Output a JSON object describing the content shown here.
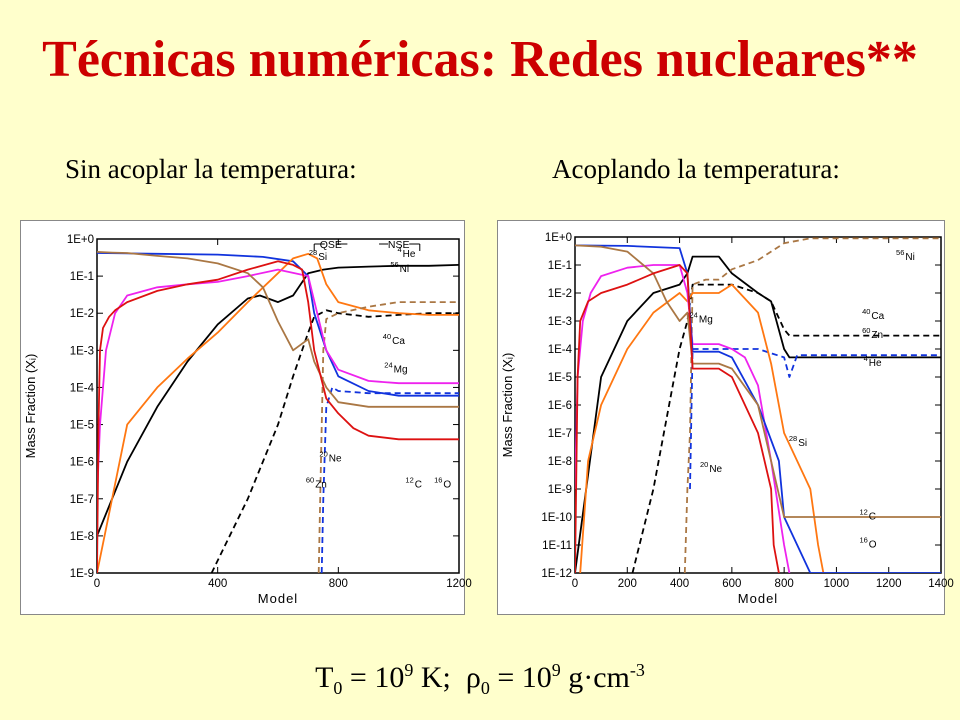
{
  "title": "Técnicas numéricas: Redes nucleares**",
  "subtitles": {
    "left": "Sin acoplar la temperatura:",
    "right": "Acoplando la temperatura:"
  },
  "footer": {
    "t_sym": "T",
    "t_sub": "0",
    "eq1": " = 10",
    "exp1": "9",
    "unit1": " K;  ",
    "rho_sym": "ρ",
    "rho_sub": "0",
    "eq2": " = 10",
    "exp2": "9",
    "unit2": " g·cm",
    "exp3": "-3"
  },
  "colors": {
    "background": "#ffffcc",
    "title": "#cc0000",
    "black": "#000000",
    "red": "#dd1111",
    "blue": "#1133dd",
    "magenta": "#ee22ee",
    "orange": "#ff7711",
    "brown": "#aa7744"
  },
  "chart_data": [
    {
      "type": "line",
      "xlabel": "Model",
      "ylabel": "Mass Fraction (Xᵢ)",
      "xlim": [
        0,
        1200
      ],
      "xticks": [
        "0",
        "400",
        "800",
        "1200"
      ],
      "ylog": true,
      "ylim": [
        1e-09,
        1
      ],
      "ytick_labels": [
        "1E+0",
        "1E-1",
        "1E-2",
        "1E-3",
        "1E-4",
        "1E-5",
        "1E-6",
        "1E-7",
        "1E-8",
        "1E-9"
      ],
      "annotations": [
        "QSE",
        "NSE"
      ],
      "species_labels": [
        {
          "mass": "28",
          "el": "Si",
          "x": 730,
          "y": 0.27
        },
        {
          "mass": "4",
          "el": "He",
          "x": 1010,
          "y": 0.33
        },
        {
          "mass": "56",
          "el": "Ni",
          "x": 1000,
          "y": 0.13
        },
        {
          "mass": "40",
          "el": "Ca",
          "x": 975,
          "y": 0.0015
        },
        {
          "mass": "24",
          "el": "Mg",
          "x": 980,
          "y": 0.00025
        },
        {
          "mass": "20",
          "el": "Ne",
          "x": 765,
          "y": 1e-06
        },
        {
          "mass": "60",
          "el": "Zn",
          "x": 720,
          "y": 2e-07
        },
        {
          "mass": "12",
          "el": "C",
          "x": 1050,
          "y": 2e-07
        },
        {
          "mass": "16",
          "el": "O",
          "x": 1145,
          "y": 2e-07
        }
      ],
      "series": [
        {
          "color": "#000000",
          "x": [
            0,
            50,
            100,
            200,
            300,
            400,
            500,
            540,
            600,
            650,
            700,
            750,
            800,
            900,
            1000,
            1100,
            1200
          ],
          "y": [
            1e-08,
            1e-07,
            1e-06,
            3e-05,
            0.0005,
            0.005,
            0.025,
            0.03,
            0.02,
            0.03,
            0.12,
            0.15,
            0.17,
            0.18,
            0.19,
            0.19,
            0.2
          ]
        },
        {
          "color": "#000000",
          "dash": true,
          "x": [
            380,
            500,
            600,
            650,
            700,
            720,
            760,
            800,
            900,
            1000,
            1100,
            1200
          ],
          "y": [
            1e-09,
            1e-07,
            1e-05,
            0.0002,
            0.003,
            0.008,
            0.012,
            0.01,
            0.008,
            0.009,
            0.01,
            0.01
          ]
        },
        {
          "color": "#1133dd",
          "x": [
            0,
            200,
            400,
            550,
            650,
            700,
            720,
            760,
            800,
            900,
            1000,
            1100,
            1200
          ],
          "y": [
            0.42,
            0.4,
            0.38,
            0.33,
            0.25,
            0.1,
            0.01,
            0.001,
            0.0002,
            8e-05,
            6e-05,
            6e-05,
            6e-05
          ]
        },
        {
          "color": "#1133dd",
          "dash": true,
          "x": [
            745,
            750,
            760,
            780,
            800,
            900,
            1000,
            1100,
            1200
          ],
          "y": [
            1e-09,
            1e-07,
            3e-05,
            0.0001,
            8e-05,
            7e-05,
            7e-05,
            7e-05,
            7e-05
          ]
        },
        {
          "color": "#ff7711",
          "x": [
            0,
            100,
            200,
            300,
            400,
            500,
            600,
            650,
            700,
            730,
            760,
            800,
            900,
            1000,
            1100,
            1200
          ],
          "y": [
            1e-09,
            1e-05,
            0.0001,
            0.0006,
            0.003,
            0.02,
            0.12,
            0.3,
            0.4,
            0.3,
            0.06,
            0.02,
            0.012,
            0.01,
            0.009,
            0.009
          ]
        },
        {
          "color": "#aa7744",
          "dash": true,
          "x": [
            735,
            740,
            750,
            760,
            800,
            900,
            1000,
            1100,
            1200
          ],
          "y": [
            1e-09,
            1e-07,
            0.001,
            0.007,
            0.01,
            0.015,
            0.02,
            0.02,
            0.02
          ]
        },
        {
          "color": "#ee22ee",
          "x": [
            0,
            10,
            30,
            60,
            100,
            200,
            300,
            400,
            500,
            600,
            700,
            730,
            760,
            800,
            900,
            1000,
            1100,
            1200
          ],
          "y": [
            1e-07,
            1e-05,
            0.001,
            0.01,
            0.03,
            0.05,
            0.06,
            0.07,
            0.1,
            0.15,
            0.1,
            0.01,
            0.001,
            0.0003,
            0.00015,
            0.00013,
            0.00013,
            0.00013
          ]
        },
        {
          "color": "#aa7744",
          "x": [
            0,
            50,
            100,
            200,
            300,
            400,
            500,
            550,
            600,
            650,
            700,
            720,
            760,
            800,
            900,
            1000,
            1100,
            1200
          ],
          "y": [
            0.45,
            0.43,
            0.42,
            0.35,
            0.3,
            0.22,
            0.12,
            0.05,
            0.006,
            0.001,
            0.002,
            0.0005,
            0.0001,
            4e-05,
            3e-05,
            3e-05,
            3e-05,
            3e-05
          ]
        },
        {
          "color": "#dd1111",
          "x": [
            0,
            5,
            10,
            20,
            40,
            60,
            100,
            200,
            300,
            400,
            500,
            600,
            650,
            680,
            700,
            720,
            760,
            800,
            850,
            900,
            1000,
            1100,
            1200
          ],
          "y": [
            1e-09,
            1e-05,
            0.001,
            0.004,
            0.008,
            0.012,
            0.02,
            0.04,
            0.06,
            0.08,
            0.15,
            0.25,
            0.2,
            0.15,
            0.02,
            0.001,
            5e-05,
            2e-05,
            8e-06,
            5e-06,
            4e-06,
            4e-06,
            4e-06
          ]
        }
      ]
    },
    {
      "type": "line",
      "xlabel": "Model",
      "ylabel": "Mass Fraction (Xᵢ)",
      "xlim": [
        0,
        1400
      ],
      "xticks": [
        "0",
        "200",
        "400",
        "600",
        "800",
        "1000",
        "1200",
        "1400"
      ],
      "ylog": true,
      "ylim": [
        1e-12,
        1
      ],
      "ytick_labels": [
        "1E+0",
        "1E-1",
        "1E-2",
        "1E-3",
        "1E-4",
        "1E-5",
        "1E-6",
        "1E-7",
        "1E-8",
        "1E-9",
        "1E-10",
        "1E-11",
        "1E-12"
      ],
      "species_labels": [
        {
          "mass": "56",
          "el": "Ni",
          "x": 1260,
          "y": 0.15
        },
        {
          "mass": "40",
          "el": "Ca",
          "x": 1130,
          "y": 0.0012
        },
        {
          "mass": "60",
          "el": "Zn",
          "x": 1130,
          "y": 0.00025
        },
        {
          "mass": "4",
          "el": "He",
          "x": 1120,
          "y": 2.5e-05
        },
        {
          "mass": "24",
          "el": "Mg",
          "x": 470,
          "y": 0.00088
        },
        {
          "mass": "28",
          "el": "Si",
          "x": 850,
          "y": 3.5e-08
        },
        {
          "mass": "20",
          "el": "Ne",
          "x": 510,
          "y": 4e-09
        },
        {
          "mass": "12",
          "el": "C",
          "x": 1120,
          "y": 8e-11
        },
        {
          "mass": "16",
          "el": "O",
          "x": 1120,
          "y": 8e-12
        }
      ],
      "series": [
        {
          "color": "#000000",
          "x": [
            0,
            100,
            200,
            300,
            400,
            430,
            450,
            550,
            600,
            700,
            750,
            800,
            820,
            900,
            1000,
            1100,
            1200,
            1300,
            1400
          ],
          "y": [
            1e-12,
            1e-05,
            0.001,
            0.01,
            0.02,
            0.05,
            0.2,
            0.2,
            0.05,
            0.01,
            0.005,
            0.0001,
            5e-05,
            5e-05,
            5e-05,
            5e-05,
            5e-05,
            5e-05,
            5e-05
          ]
        },
        {
          "color": "#000000",
          "dash": true,
          "x": [
            220,
            300,
            360,
            400,
            430,
            450,
            550,
            600,
            700,
            750,
            800,
            820,
            900,
            1000,
            1100,
            1200,
            1300,
            1400
          ],
          "y": [
            1e-12,
            1e-09,
            1e-06,
            0.0001,
            0.001,
            0.02,
            0.02,
            0.02,
            0.01,
            0.005,
            0.0005,
            0.0003,
            0.0003,
            0.0003,
            0.0003,
            0.0003,
            0.0003,
            0.0003
          ]
        },
        {
          "color": "#aa7744",
          "dash": true,
          "x": [
            420,
            430,
            440,
            450,
            500,
            550,
            600,
            700,
            800,
            900,
            1000,
            1200,
            1400
          ],
          "y": [
            1e-12,
            1e-09,
            1e-07,
            0.02,
            0.03,
            0.03,
            0.07,
            0.15,
            0.6,
            0.9,
            0.9,
            0.9,
            0.9
          ]
        },
        {
          "color": "#1133dd",
          "dash": true,
          "x": [
            440,
            450,
            550,
            600,
            700,
            800,
            820,
            850,
            900,
            1000,
            1200,
            1400
          ],
          "y": [
            1e-09,
            0.0001,
            0.0001,
            0.0001,
            0.0001,
            5e-05,
            1e-05,
            6e-05,
            6e-05,
            6e-05,
            6e-05,
            6e-05
          ]
        },
        {
          "color": "#ff7711",
          "x": [
            20,
            50,
            100,
            200,
            300,
            400,
            430,
            450,
            550,
            600,
            700,
            750,
            800,
            850,
            900,
            930,
            950
          ],
          "y": [
            1e-12,
            1e-08,
            1e-06,
            0.0001,
            0.002,
            0.01,
            0.005,
            0.01,
            0.01,
            0.02,
            0.002,
            3e-05,
            1e-07,
            1e-08,
            1e-09,
            1e-11,
            1e-12
          ]
        },
        {
          "color": "#ee22ee",
          "x": [
            0,
            10,
            30,
            60,
            100,
            200,
            300,
            400,
            430,
            450,
            550,
            600,
            650,
            700,
            750,
            800,
            820
          ],
          "y": [
            1e-09,
            1e-05,
            0.001,
            0.01,
            0.04,
            0.08,
            0.1,
            0.1,
            0.01,
            0.00015,
            0.00015,
            0.0001,
            5e-05,
            5e-06,
            1e-08,
            1e-11,
            1e-12
          ]
        },
        {
          "color": "#1133dd",
          "x": [
            0,
            200,
            400,
            430,
            450,
            550,
            600,
            700,
            780,
            800,
            850,
            900,
            1000,
            1100,
            1200,
            1300,
            1400
          ],
          "y": [
            0.5,
            0.48,
            0.4,
            0.05,
            8e-05,
            8e-05,
            5e-05,
            1e-06,
            1e-08,
            1e-10,
            1e-11,
            1e-12,
            1e-12,
            1e-12,
            1e-12,
            1e-12,
            1e-12
          ]
        },
        {
          "color": "#aa7744",
          "x": [
            0,
            100,
            200,
            300,
            350,
            400,
            430,
            450,
            550,
            600,
            700,
            750,
            800,
            850,
            1000,
            1200,
            1400
          ],
          "y": [
            0.5,
            0.45,
            0.3,
            0.05,
            0.005,
            0.001,
            0.002,
            3e-05,
            3e-05,
            2e-05,
            1e-06,
            1e-08,
            1e-10,
            1e-10,
            1e-10,
            1e-10,
            1e-10
          ]
        },
        {
          "color": "#dd1111",
          "x": [
            0,
            10,
            20,
            50,
            100,
            200,
            300,
            400,
            430,
            450,
            550,
            600,
            700,
            750,
            760,
            780
          ],
          "y": [
            1e-12,
            1e-05,
            0.001,
            0.005,
            0.01,
            0.02,
            0.05,
            0.1,
            0.05,
            2e-05,
            2e-05,
            1e-05,
            1e-07,
            1e-09,
            1e-11,
            1e-12
          ]
        }
      ]
    }
  ]
}
